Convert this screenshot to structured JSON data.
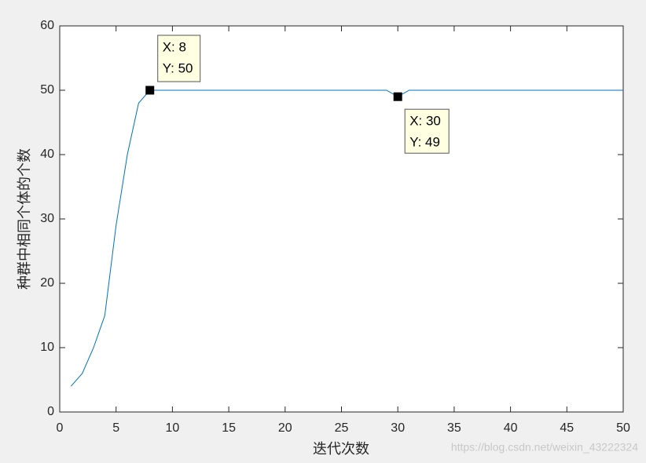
{
  "chart_data": {
    "type": "line",
    "xlabel": "迭代次数",
    "ylabel": "种群中相同个体的个数",
    "x": [
      1,
      2,
      3,
      4,
      5,
      6,
      7,
      8,
      9,
      10,
      11,
      12,
      13,
      14,
      15,
      16,
      17,
      18,
      19,
      20,
      21,
      22,
      23,
      24,
      25,
      26,
      27,
      28,
      29,
      30,
      31,
      32,
      33,
      34,
      35,
      36,
      37,
      38,
      39,
      40,
      41,
      42,
      43,
      44,
      45,
      46,
      47,
      48,
      49,
      50
    ],
    "series": [
      {
        "color": "#0072bd",
        "values": [
          4,
          6,
          10,
          15,
          29,
          40,
          48,
          50,
          50,
          50,
          50,
          50,
          50,
          50,
          50,
          50,
          50,
          50,
          50,
          50,
          50,
          50,
          50,
          50,
          50,
          50,
          50,
          50,
          50,
          49,
          50,
          50,
          50,
          50,
          50,
          50,
          50,
          50,
          50,
          50,
          50,
          50,
          50,
          50,
          50,
          50,
          50,
          50,
          50,
          50
        ]
      }
    ],
    "xlim": [
      0,
      50
    ],
    "ylim": [
      0,
      60
    ],
    "xticks": [
      0,
      5,
      10,
      15,
      20,
      25,
      30,
      35,
      40,
      45,
      50
    ],
    "yticks": [
      0,
      10,
      20,
      30,
      40,
      50,
      60
    ],
    "annotations": [
      {
        "x": 8,
        "y": 50,
        "lines": [
          "X: 8",
          "Y: 50"
        ]
      },
      {
        "x": 30,
        "y": 49,
        "lines": [
          "X: 30",
          "Y: 49"
        ]
      }
    ],
    "watermark": "https://blog.csdn.net/weixin_43222324"
  }
}
